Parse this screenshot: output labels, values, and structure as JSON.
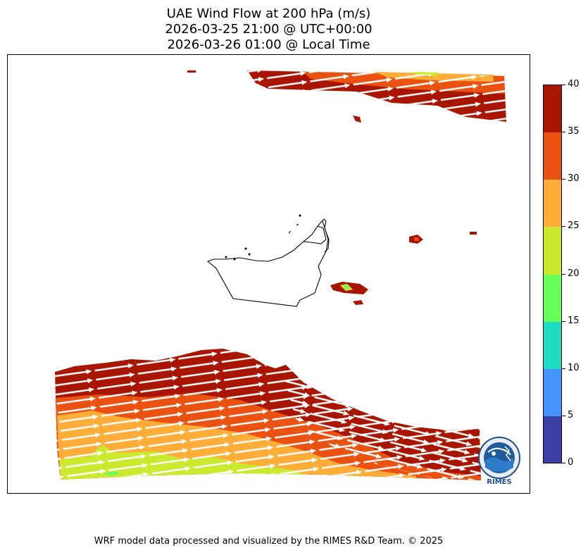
{
  "header": {
    "title_line1": "UAE Wind Flow at 200 hPa (m/s)",
    "title_line2": "2026-03-25 21:00 @ UTC+00:00",
    "title_line3": "2026-03-26 01:00 @ Local Time"
  },
  "colorbar": {
    "ticks": [
      "0",
      "5",
      "10",
      "15",
      "20",
      "25",
      "30",
      "35",
      "40"
    ],
    "bins": [
      {
        "range": "0-5",
        "color": "#3f3fa8"
      },
      {
        "range": "5-10",
        "color": "#4394fc"
      },
      {
        "range": "10-15",
        "color": "#1edcc1"
      },
      {
        "range": "15-20",
        "color": "#66ff5a"
      },
      {
        "range": "20-25",
        "color": "#cbe92f"
      },
      {
        "range": "25-30",
        "color": "#fdad38"
      },
      {
        "range": "30-35",
        "color": "#ea5212"
      },
      {
        "range": "35-40",
        "color": "#a81602"
      }
    ]
  },
  "logo": {
    "text": "RIMES",
    "ring_text": "Regional Integrated Multi-Hazard Early Warning System"
  },
  "footer": {
    "credit": "WRF model data processed and visualized by the RIMES R&D Team. © 2025"
  }
}
